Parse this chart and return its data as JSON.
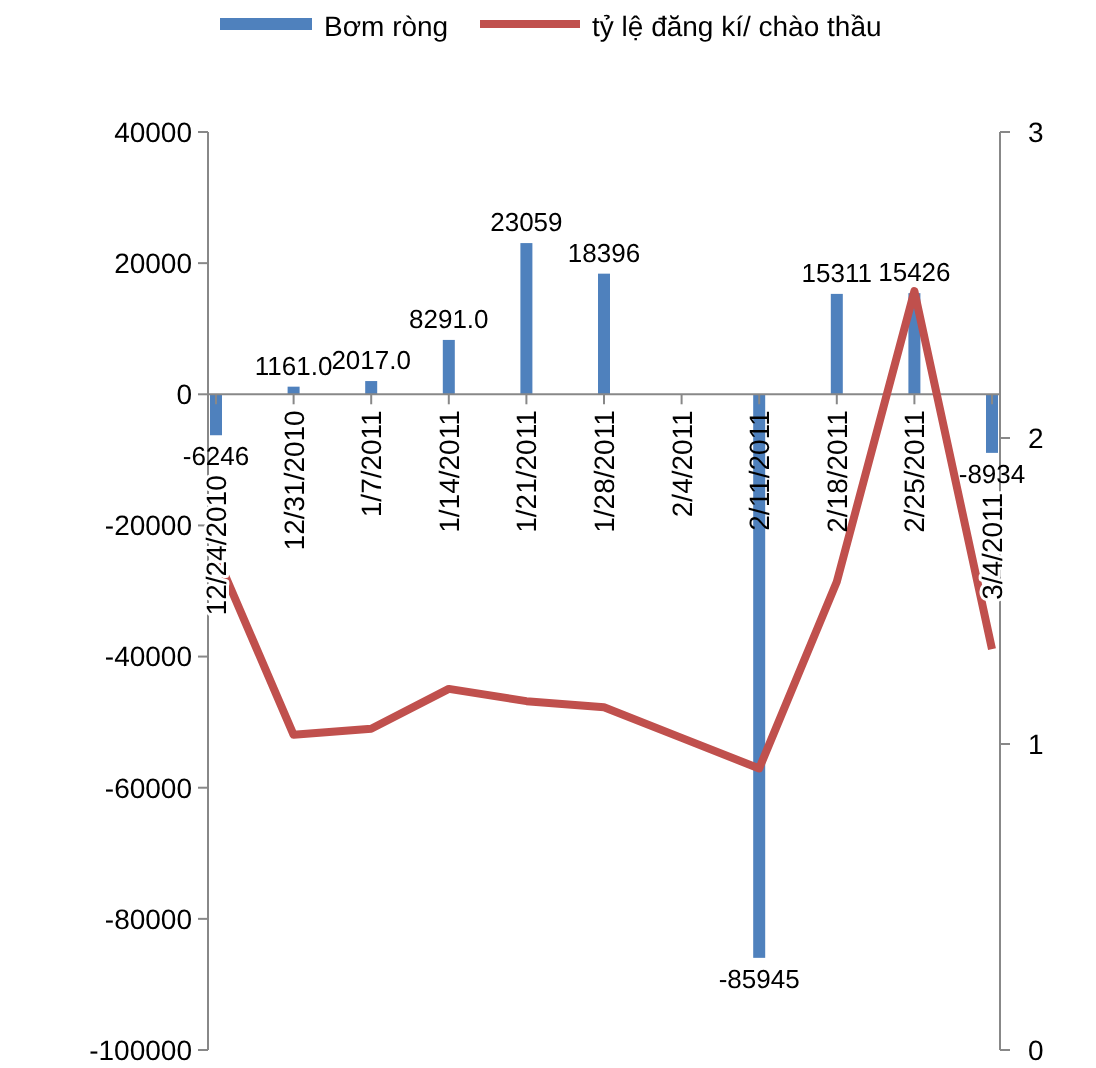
{
  "chart_data": {
    "type": "bar",
    "categories": [
      "12/24/2010",
      "12/31/2010",
      "1/7/2011",
      "1/14/2011",
      "1/21/2011",
      "1/28/2011",
      "2/4/2011",
      "2/11/2011",
      "2/18/2011",
      "2/25/2011",
      "3/4/2011"
    ],
    "series": [
      {
        "name": "Bơm ròng",
        "color": "#4f81bd",
        "values": [
          -6246,
          1161,
          2017,
          8291,
          23059,
          18396,
          null,
          -85945,
          15311,
          15426,
          -8934
        ],
        "value_labels": [
          "-6246",
          "1161.0",
          "2017.0",
          "8291.0",
          "23059",
          "18396",
          null,
          "-85945",
          "15311",
          "15426",
          "-8934"
        ]
      },
      {
        "name": "tỷ lệ đăng kí/ chào thầu",
        "type": "line",
        "axis": "y2",
        "color": "#c0504d",
        "values": [
          1.62,
          1.03,
          1.05,
          1.18,
          1.14,
          1.12,
          1.02,
          0.92,
          1.53,
          2.48,
          1.31
        ]
      }
    ],
    "ylim": [
      -100000,
      40000
    ],
    "yticks": [
      -100000,
      -80000,
      -60000,
      -40000,
      -20000,
      0,
      20000,
      40000
    ],
    "y2lim": [
      0,
      3
    ],
    "y2ticks": [
      0,
      1,
      2,
      3
    ],
    "legend": "top",
    "grid": false,
    "marker": "none"
  }
}
